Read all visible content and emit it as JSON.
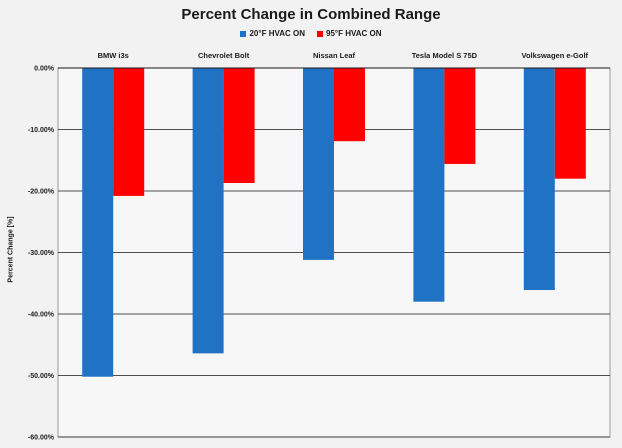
{
  "chart_data": {
    "type": "bar",
    "title": "Percent Change in Combined Range",
    "xlabel": "",
    "ylabel": "Percent Change [%]",
    "categories": [
      "BMW i3s",
      "Chevrolet Bolt",
      "Nissan Leaf",
      "Tesla Model S 75D",
      "Volkswagen e-Golf"
    ],
    "series": [
      {
        "name": "20°F HVAC ON",
        "color": "#1f72c4",
        "values": [
          -50.2,
          -46.4,
          -31.2,
          -38.0,
          -36.1
        ]
      },
      {
        "name": "95°F HVAC ON",
        "color": "#ff0000",
        "values": [
          -20.8,
          -18.7,
          -11.9,
          -15.6,
          -18.0
        ]
      }
    ],
    "ylim": [
      -60,
      0
    ],
    "yticks": [
      "0.00%",
      "-10.00%",
      "-20.00%",
      "-30.00%",
      "-40.00%",
      "-50.00%",
      "-60.00%"
    ],
    "grid": true,
    "legend_position": "top-center"
  }
}
